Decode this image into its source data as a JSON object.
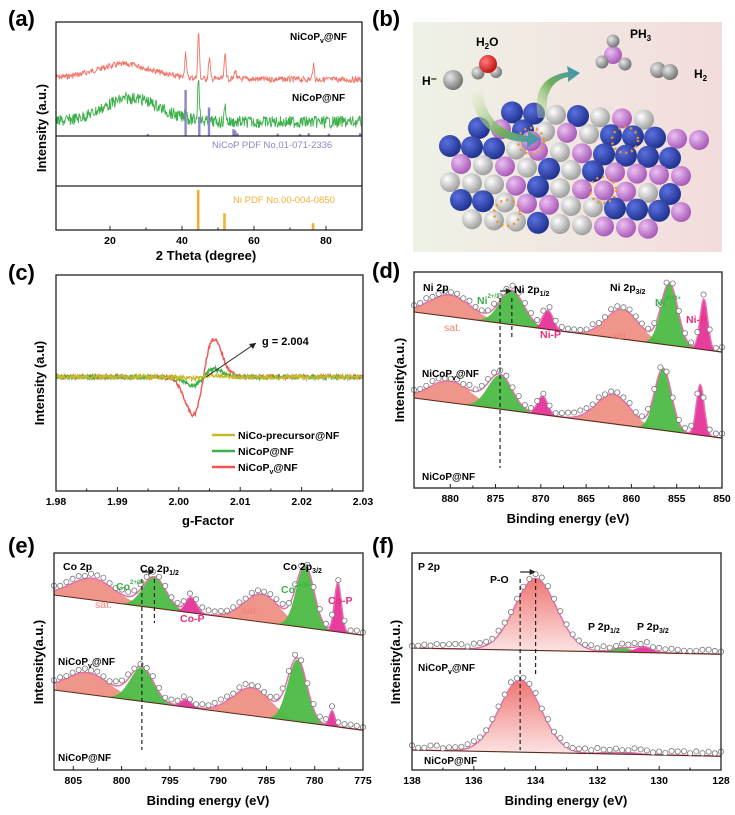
{
  "figure": {
    "panels": [
      "(a)",
      "(b)",
      "(c)",
      "(d)",
      "(e)",
      "(f)"
    ]
  },
  "chart_data": [
    {
      "id": "a",
      "panel_label": "(a)",
      "type": "line",
      "title": "",
      "xlabel": "2 Theta (degree)",
      "ylabel": "Intensity (a.u.)",
      "xlim": [
        5,
        90
      ],
      "xticks": [
        20,
        40,
        60,
        80
      ],
      "series": [
        {
          "name": "NiCoPv@NF",
          "label_main": "NiCoP",
          "label_sub": "v",
          "label_tail": "@NF",
          "color": "#f07468",
          "broad_hump_center": 24,
          "peaks": [
            {
              "x": 41.0,
              "h": 0.55
            },
            {
              "x": 44.6,
              "h": 1.0
            },
            {
              "x": 47.6,
              "h": 0.45
            },
            {
              "x": 52.0,
              "h": 0.55
            },
            {
              "x": 54.8,
              "h": 0.2
            },
            {
              "x": 76.5,
              "h": 0.3
            }
          ]
        },
        {
          "name": "NiCoP@NF",
          "color": "#3cb04a",
          "broad_hump_center": 26,
          "peaks": [
            {
              "x": 41.0,
              "h": 0.3
            },
            {
              "x": 44.6,
              "h": 1.0
            },
            {
              "x": 52.0,
              "h": 0.35
            }
          ]
        }
      ],
      "references": [
        {
          "name": "NiCoP PDF No.01-071-2336",
          "color": "#8b86c8",
          "sticks": [
            {
              "x": 30.5,
              "h": 0.02
            },
            {
              "x": 41.0,
              "h": 1.0
            },
            {
              "x": 44.8,
              "h": 0.42
            },
            {
              "x": 47.5,
              "h": 0.62
            },
            {
              "x": 54.3,
              "h": 0.15
            },
            {
              "x": 54.8,
              "h": 0.12
            },
            {
              "x": 55.4,
              "h": 0.06
            },
            {
              "x": 66.6,
              "h": 0.05
            },
            {
              "x": 72.8,
              "h": 0.03
            },
            {
              "x": 75.2,
              "h": 0.06
            },
            {
              "x": 80.8,
              "h": 0.05
            },
            {
              "x": 89.5,
              "h": 0.06
            }
          ]
        },
        {
          "name": "Ni PDF No.00-004-0850",
          "color": "#f0b132",
          "sticks": [
            {
              "x": 44.5,
              "h": 1.0
            },
            {
              "x": 51.8,
              "h": 0.42
            },
            {
              "x": 76.4,
              "h": 0.17
            }
          ]
        }
      ]
    },
    {
      "id": "b",
      "panel_label": "(b)",
      "type": "diagram",
      "labels": {
        "h_minus": "H⁻",
        "h2o_main": "H",
        "h2o_sub": "2",
        "h2o_tail": "O",
        "ph3_main": "PH",
        "ph3_sub": "3",
        "h2_main": "H",
        "h2_sub": "2",
        "p_site": "P"
      },
      "colors": {
        "ni_co": "#2d46b5",
        "p": "#c27bd0",
        "h": "#d7d7d7",
        "o": "#e32020",
        "vacancy": "#f0932b",
        "arrow_in": "#6aaa5a",
        "arrow_out": "#3a8ec8"
      }
    },
    {
      "id": "c",
      "panel_label": "(c)",
      "type": "line",
      "xlabel": "g-Factor",
      "ylabel": "Intensity (a.u)",
      "xlim": [
        1.98,
        2.03
      ],
      "xticks": [
        "1.98",
        "1.99",
        "2.00",
        "2.01",
        "2.02",
        "2.03"
      ],
      "ylim": [
        -1.25,
        1.25
      ],
      "annotation": "g = 2.004",
      "series": [
        {
          "name": "NiCo-precursor@NF",
          "color": "#c9b92a",
          "amplitude": 0.04
        },
        {
          "name": "NiCoP@NF",
          "color": "#3cb04a",
          "amplitude": 0.22
        },
        {
          "name": "NiCoPv@NF",
          "label_main": "NiCoP",
          "label_sub": "v",
          "label_tail": "@NF",
          "color": "#f0564d",
          "amplitude": 1.0
        }
      ],
      "center_g": 2.004,
      "trough_g": 2.0027,
      "peak_g": 2.0058
    },
    {
      "id": "d",
      "panel_label": "(d)",
      "type": "area",
      "xlabel": "Binding energy (eV)",
      "ylabel": "Intensity(a.u.)",
      "xlim": [
        884,
        850
      ],
      "xticks": [
        880,
        875,
        870,
        865,
        860,
        855,
        850
      ],
      "region": "Ni 2p",
      "labels": {
        "p12_main": "Ni 2p",
        "p12_sub": "1/2",
        "p32_main": "Ni 2p",
        "p32_sub": "3/2",
        "ox_main": "Ni",
        "ox_sup": "2+/3+",
        "bond": "Ni-P",
        "sat": "sat."
      },
      "shift_lines": [
        874.5,
        873.2
      ],
      "samples": [
        {
          "name": "NiCoPv@NF",
          "label_main": "NiCoP",
          "label_sub": "v",
          "label_tail": "@NF",
          "peaks": [
            {
              "type": "sat",
              "center": 880.0,
              "height": 0.35,
              "width": 3.2
            },
            {
              "type": "ox",
              "center": 873.2,
              "height": 0.55,
              "width": 1.9
            },
            {
              "type": "bond",
              "center": 869.2,
              "height": 0.3,
              "width": 0.8
            },
            {
              "type": "sat",
              "center": 861.0,
              "height": 0.48,
              "width": 2.6
            },
            {
              "type": "ox",
              "center": 855.8,
              "height": 1.0,
              "width": 1.3
            },
            {
              "type": "bond",
              "center": 852.0,
              "height": 0.82,
              "width": 0.6
            }
          ]
        },
        {
          "name": "NiCoP@NF",
          "peaks": [
            {
              "type": "sat",
              "center": 880.0,
              "height": 0.35,
              "width": 3.2
            },
            {
              "type": "ox",
              "center": 874.5,
              "height": 0.55,
              "width": 1.9
            },
            {
              "type": "bond",
              "center": 869.8,
              "height": 0.3,
              "width": 0.8
            },
            {
              "type": "sat",
              "center": 862.0,
              "height": 0.48,
              "width": 2.6
            },
            {
              "type": "ox",
              "center": 856.5,
              "height": 1.0,
              "width": 1.3
            },
            {
              "type": "bond",
              "center": 852.4,
              "height": 0.82,
              "width": 0.6
            }
          ]
        }
      ]
    },
    {
      "id": "e",
      "panel_label": "(e)",
      "type": "area",
      "xlabel": "Binding energy (eV)",
      "ylabel": "Intensity(a.u.)",
      "xlim": [
        807,
        775
      ],
      "xticks": [
        805,
        800,
        795,
        790,
        785,
        780,
        775
      ],
      "region": "Co 2p",
      "labels": {
        "p12_main": "Co 2p",
        "p12_sub": "1/2",
        "p32_main": "Co 2p",
        "p32_sub": "3/2",
        "ox_main": "Co",
        "ox_sup": "2+/3+",
        "bond": "Co-P",
        "sat": "sat."
      },
      "shift_lines": [
        797.9,
        796.6
      ],
      "samples": [
        {
          "name": "NiCoPv@NF",
          "label_main": "NiCoP",
          "label_sub": "v",
          "label_tail": "@NF",
          "peaks": [
            {
              "type": "sat",
              "center": 803.0,
              "height": 0.35,
              "width": 3.2
            },
            {
              "type": "ox",
              "center": 796.6,
              "height": 0.5,
              "width": 1.7
            },
            {
              "type": "bond",
              "center": 792.8,
              "height": 0.25,
              "width": 0.8
            },
            {
              "type": "sat",
              "center": 785.5,
              "height": 0.45,
              "width": 2.6
            },
            {
              "type": "ox",
              "center": 781.0,
              "height": 1.0,
              "width": 1.3
            },
            {
              "type": "bond",
              "center": 777.6,
              "height": 0.8,
              "width": 0.5
            }
          ]
        },
        {
          "name": "NiCoP@NF",
          "peaks": [
            {
              "type": "sat",
              "center": 803.5,
              "height": 0.35,
              "width": 3.2
            },
            {
              "type": "ox",
              "center": 797.9,
              "height": 0.55,
              "width": 1.7
            },
            {
              "type": "bond",
              "center": 793.3,
              "height": 0.12,
              "width": 0.8
            },
            {
              "type": "sat",
              "center": 786.5,
              "height": 0.45,
              "width": 2.8
            },
            {
              "type": "ox",
              "center": 781.8,
              "height": 1.0,
              "width": 1.4
            },
            {
              "type": "bond",
              "center": 778.2,
              "height": 0.25,
              "width": 0.4
            }
          ]
        }
      ]
    },
    {
      "id": "f",
      "panel_label": "(f)",
      "type": "area",
      "xlabel": "Binding energy (eV)",
      "ylabel": "Intensity(a.u.)",
      "xlim": [
        138,
        128
      ],
      "xticks": [
        138,
        136,
        134,
        132,
        130,
        128
      ],
      "region": "P 2p",
      "labels": {
        "po": "P-O",
        "p12_main": "P 2p",
        "p12_sub": "1/2",
        "p32_main": "P 2p",
        "p32_sub": "3/2"
      },
      "shift_lines": [
        134.5,
        134.0
      ],
      "samples": [
        {
          "name": "NiCoPv@NF",
          "label_main": "NiCoP",
          "label_sub": "v",
          "label_tail": "@NF",
          "peaks": [
            {
              "type": "po",
              "center": 134.0,
              "height": 1.0,
              "width": 0.95
            },
            {
              "type": "p12",
              "center": 131.2,
              "height": 0.06,
              "width": 0.45
            },
            {
              "type": "p32",
              "center": 130.5,
              "height": 0.08,
              "width": 0.4
            }
          ]
        },
        {
          "name": "NiCoP@NF",
          "peaks": [
            {
              "type": "po",
              "center": 134.5,
              "height": 1.0,
              "width": 0.95
            },
            {
              "type": "p12",
              "center": 131.6,
              "height": 0.02,
              "width": 0.45
            },
            {
              "type": "p32",
              "center": 130.9,
              "height": 0.02,
              "width": 0.4
            }
          ]
        }
      ]
    }
  ]
}
